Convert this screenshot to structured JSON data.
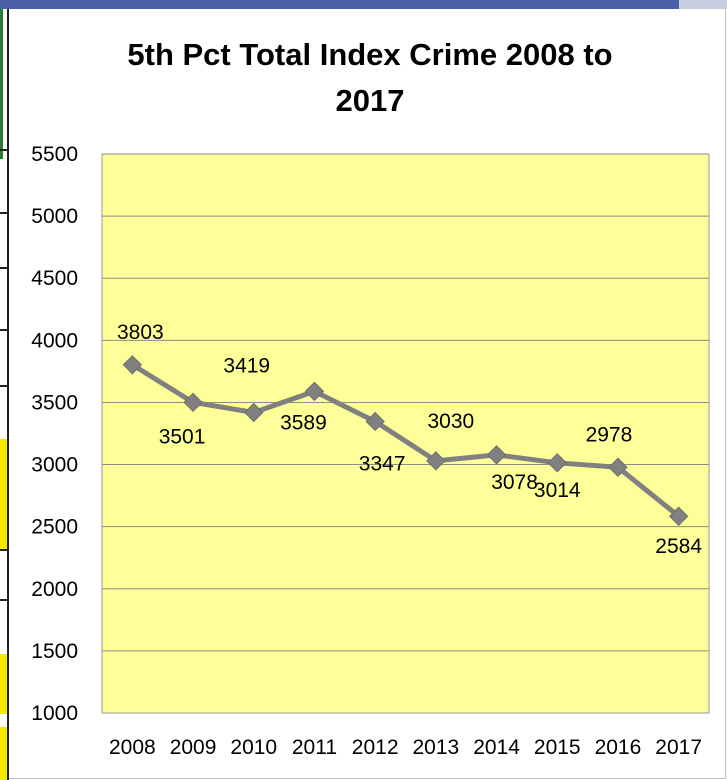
{
  "chart_data": {
    "type": "line",
    "title_line1": "5th Pct Total Index Crime 2008 to",
    "title_line2": "2017",
    "categories": [
      "2008",
      "2009",
      "2010",
      "2011",
      "2012",
      "2013",
      "2014",
      "2015",
      "2016",
      "2017"
    ],
    "series": [
      {
        "values": [
          3803,
          3501,
          3419,
          3589,
          3347,
          3030,
          3078,
          3014,
          2978,
          2584
        ]
      }
    ],
    "data_labels": [
      "3803",
      "3501",
      "3419",
      "3589",
      "3347",
      "3030",
      "3078",
      "3014",
      "2978",
      "2584"
    ],
    "ylim": [
      1000,
      5500
    ],
    "yticks": [
      1000,
      1500,
      2000,
      2500,
      3000,
      3500,
      4000,
      4500,
      5000,
      5500
    ],
    "grid": true,
    "plot_background": "#ffff99",
    "line_color": "#808080",
    "marker": "diamond"
  }
}
